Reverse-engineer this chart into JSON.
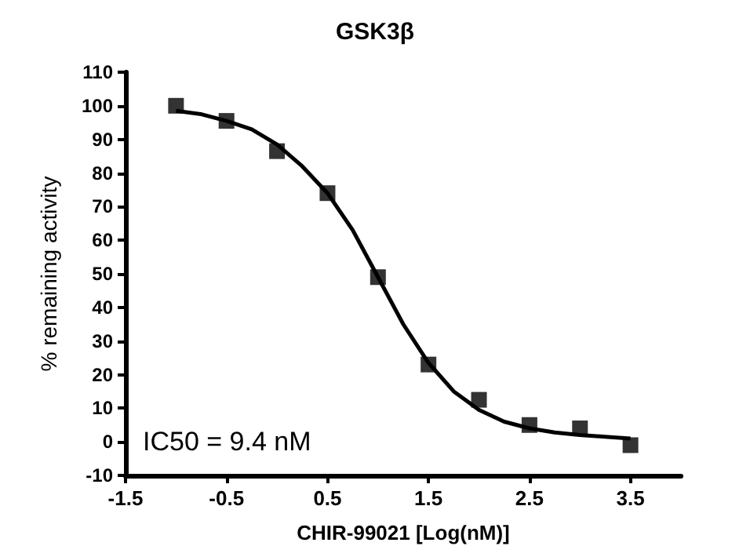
{
  "chart_data": {
    "type": "scatter",
    "title": "GSK3β",
    "xlabel": "CHIR-99021 [Log(nM)]",
    "ylabel": "% remaining activity",
    "annotations": [
      "IC50 = 9.4 nM"
    ],
    "series": [
      {
        "color": "#000000",
        "marker": "square",
        "x": [
          -1,
          -0.5,
          0,
          0.5,
          1,
          1.5,
          2,
          2.5,
          3,
          3.5
        ],
        "values": [
          100,
          95.5,
          86.5,
          74,
          49,
          23,
          12.5,
          5,
          4,
          -1
        ]
      },
      {
        "type": "line",
        "color": "#000000",
        "marker": "none",
        "line_style": "solid",
        "x": [
          -1,
          -0.75,
          -0.5,
          -0.25,
          0,
          0.25,
          0.5,
          0.75,
          1,
          1.25,
          1.5,
          1.75,
          2,
          2.25,
          2.5,
          2.75,
          3,
          3.25,
          3.5
        ],
        "values": [
          98.5,
          97.5,
          95.5,
          93,
          88.5,
          82,
          74,
          63,
          49,
          35,
          23.5,
          15,
          9.5,
          6,
          4,
          2.8,
          2,
          1.5,
          1
        ]
      }
    ],
    "xlim": [
      -1.5,
      4
    ],
    "xticks": [
      -1.5,
      -0.5,
      0.5,
      1.5,
      2.5,
      3.5
    ],
    "ylim": [
      -10,
      110
    ],
    "yticks": [
      -10,
      0,
      10,
      20,
      30,
      40,
      50,
      60,
      70,
      80,
      90,
      100,
      110
    ],
    "grid": false
  }
}
